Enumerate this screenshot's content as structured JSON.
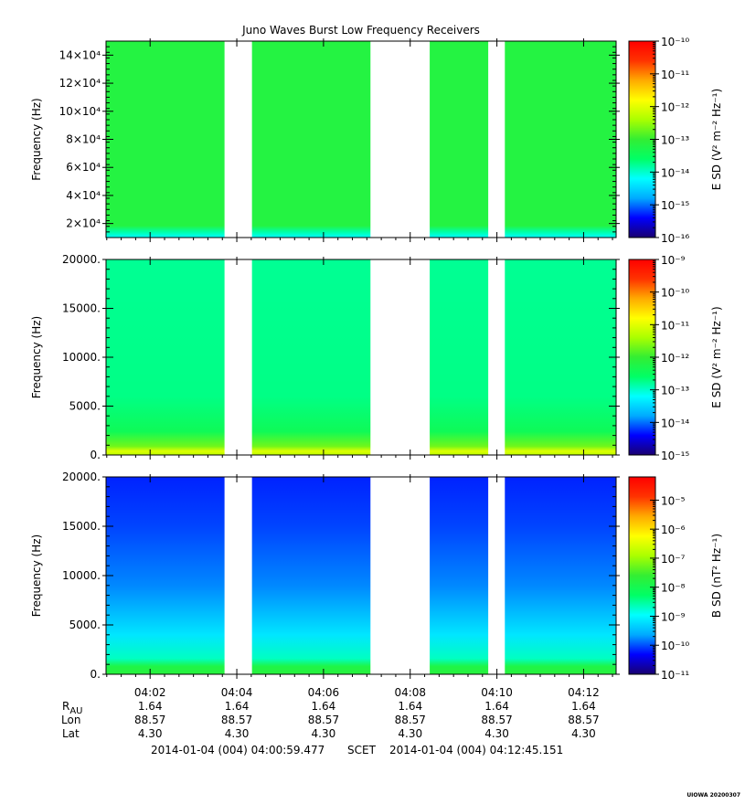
{
  "title": "Juno Waves Burst Low Frequency Receivers",
  "colors": {
    "gap": "#ffffff",
    "frame": "#000000",
    "colormap": [
      "#1a0070",
      "#0000ff",
      "#00aaff",
      "#00ffff",
      "#00ff66",
      "#33ee33",
      "#aaff00",
      "#ffff00",
      "#ffaa00",
      "#ff3300",
      "#ff0000"
    ]
  },
  "chart_data": [
    {
      "type": "heatmap",
      "ylabel": "Frequency (Hz)",
      "ylim": [
        10000,
        150000
      ],
      "yticks": [
        {
          "value": 20000,
          "label": "2×10⁴"
        },
        {
          "value": 40000,
          "label": "4×10⁴"
        },
        {
          "value": 60000,
          "label": "6×10⁴"
        },
        {
          "value": 80000,
          "label": "8×10⁴"
        },
        {
          "value": 100000,
          "label": "10×10⁴"
        },
        {
          "value": 120000,
          "label": "12×10⁴"
        },
        {
          "value": 140000,
          "label": "14×10⁴"
        }
      ],
      "colorbar_label": "E SD (V² m⁻² Hz⁻¹)",
      "colorbar_ticks": [
        "10⁻¹⁰",
        "10⁻¹¹",
        "10⁻¹²",
        "10⁻¹³",
        "10⁻¹⁴",
        "10⁻¹⁵",
        "10⁻¹⁶"
      ],
      "log_range": [
        -16,
        -10
      ],
      "fill_level": 0.47
    },
    {
      "type": "heatmap",
      "ylabel": "Frequency (Hz)",
      "ylim": [
        0,
        20000
      ],
      "yticks": [
        {
          "value": 0,
          "label": "0."
        },
        {
          "value": 5000,
          "label": "5000."
        },
        {
          "value": 10000,
          "label": "10000."
        },
        {
          "value": 15000,
          "label": "15000."
        },
        {
          "value": 20000,
          "label": "20000."
        }
      ],
      "colorbar_label": "E SD (V² m⁻² Hz⁻¹)",
      "colorbar_ticks": [
        "10⁻⁹",
        "10⁻¹⁰",
        "10⁻¹¹",
        "10⁻¹²",
        "10⁻¹³",
        "10⁻¹⁴",
        "10⁻¹⁵"
      ],
      "log_range": [
        -15,
        -9
      ],
      "fill_level": 0.37
    },
    {
      "type": "heatmap",
      "ylabel": "Frequency (Hz)",
      "ylim": [
        0,
        20000
      ],
      "yticks": [
        {
          "value": 0,
          "label": "0."
        },
        {
          "value": 5000,
          "label": "5000."
        },
        {
          "value": 10000,
          "label": "10000."
        },
        {
          "value": 15000,
          "label": "15000."
        },
        {
          "value": 20000,
          "label": "20000."
        }
      ],
      "colorbar_label": "B SD (nT² Hz⁻¹)",
      "colorbar_ticks": [
        "10⁻⁵",
        "10⁻⁶",
        "10⁻⁷",
        "10⁻⁸",
        "10⁻⁹",
        "10⁻¹⁰",
        "10⁻¹¹"
      ],
      "log_range": [
        -11,
        -4.2
      ],
      "fill_level": 0.15
    }
  ],
  "time_axis": {
    "start": "04:00:59",
    "end": "04:12:45",
    "ticks": [
      "04:02",
      "04:04",
      "04:06",
      "04:08",
      "04:10",
      "04:12"
    ],
    "gaps": [
      [
        "04:03:43",
        "04:04:21"
      ],
      [
        "04:07:05",
        "04:08:27"
      ],
      [
        "04:09:48",
        "04:10:11"
      ]
    ]
  },
  "ephemeris": {
    "labels": [
      "R",
      "Lon",
      "Lat"
    ],
    "r_subscript": "AU",
    "values": {
      "R": [
        "1.64",
        "1.64",
        "1.64",
        "1.64",
        "1.64",
        "1.64"
      ],
      "Lon": [
        "88.57",
        "88.57",
        "88.57",
        "88.57",
        "88.57",
        "88.57"
      ],
      "Lat": [
        "4.30",
        "4.30",
        "4.30",
        "4.30",
        "4.30",
        "4.30"
      ]
    }
  },
  "footer": {
    "start": "2014-01-04 (004) 04:00:59.477",
    "scet": "SCET",
    "end": "2014-01-04 (004) 04:12:45.151"
  },
  "stamp": "UIOWA 20200307"
}
